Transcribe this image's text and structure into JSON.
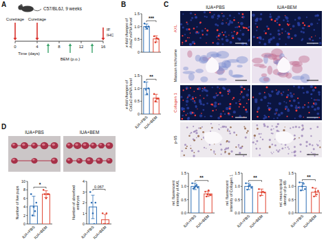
{
  "figure": {
    "panels": [
      "A",
      "B",
      "C",
      "D"
    ],
    "schema": {
      "strain": "C57/BL6J, 9 weeks",
      "procedure": "Curettage",
      "procedure_days": [
        0,
        4
      ],
      "treatment": "BEM (p.o.)",
      "treatment_days": [
        6,
        10,
        14
      ],
      "endpoint": [
        "IF",
        "IHC"
      ],
      "endpoint_day": 16,
      "xlabel": "Time (days)",
      "xlim": [
        0,
        16
      ],
      "xticks": [
        0,
        4,
        8,
        12,
        16
      ]
    },
    "images": {
      "columns": [
        "IUA+PBS",
        "IUA+BEM"
      ],
      "rows": [
        "AXL",
        "Masson trichrome",
        "Collagen 1",
        "p-65"
      ]
    },
    "photos": {
      "columns": [
        "IUA+PBS",
        "IUA+BEM"
      ]
    }
  },
  "chart_data": [
    {
      "type": "bar",
      "ylabel": "x-fold changes of Acta2 mRNA level",
      "categories": [
        null,
        null
      ],
      "values": [
        1.0,
        0.52
      ],
      "errors": [
        0.1,
        0.12
      ],
      "points": [
        [
          1.12,
          0.98,
          0.92,
          1.0
        ],
        [
          0.62,
          0.38,
          0.55,
          0.52
        ]
      ],
      "colors": [
        "#2c6db4",
        "#e0402e"
      ],
      "ylim": [
        0,
        1.5
      ],
      "yticks": [
        0,
        0.5,
        {
          "value": 1,
          "label": "1.0"
        },
        1.5
      ],
      "significance": "***",
      "tick_labels": "y"
    },
    {
      "type": "bar",
      "ylabel": "x-fold changes of Col1a1 mRNA level",
      "categories": [
        "IUA+PBS",
        "IUA+BEM"
      ],
      "values": [
        1.0,
        0.62
      ],
      "errors": [
        0.25,
        0.15
      ],
      "points": [
        [
          1.25,
          0.95,
          0.78,
          1.0
        ],
        [
          0.78,
          0.5,
          0.6,
          0.6
        ]
      ],
      "colors": [
        "#2c6db4",
        "#e0402e"
      ],
      "ylim": [
        0,
        1.5
      ],
      "yticks": [
        0,
        0.5,
        {
          "value": 1,
          "label": "1.0"
        },
        1.5
      ],
      "significance": "**"
    },
    {
      "type": "bar",
      "ylabel": "rel. fluorescent intensity of AXL",
      "categories": [
        "IUA+PBS",
        "IUA+BEM"
      ],
      "values": [
        1.0,
        0.72
      ],
      "errors": [
        0.12,
        0.1
      ],
      "points": [
        [
          1.12,
          0.92,
          0.95,
          1.0,
          1.05,
          0.96
        ],
        [
          0.8,
          0.62,
          0.7,
          0.85,
          0.68,
          0.67
        ]
      ],
      "colors": [
        "#2c6db4",
        "#e0402e"
      ],
      "ylim": [
        0,
        1.5
      ],
      "yticks": [
        {
          "value": 0,
          "label": "0.0"
        },
        0.5,
        {
          "value": 1,
          "label": "1.0"
        },
        1.5
      ],
      "significance": "**"
    },
    {
      "type": "bar",
      "ylabel": "rel. fluorescent intensity of Collagen 1",
      "categories": [
        "IUA+PBS",
        "IUA+BEM"
      ],
      "values": [
        1.0,
        0.78
      ],
      "errors": [
        0.12,
        0.12
      ],
      "points": [
        [
          1.12,
          0.88,
          1.0,
          1.05,
          0.95
        ],
        [
          0.9,
          0.65,
          0.78,
          0.8,
          0.77
        ]
      ],
      "colors": [
        "#2c6db4",
        "#e0402e"
      ],
      "ylim": [
        0,
        1.5
      ],
      "yticks": [
        {
          "value": 0,
          "label": "0.0"
        },
        0.5,
        {
          "value": 1,
          "label": "1.0"
        },
        1.5
      ],
      "significance": "**"
    },
    {
      "type": "bar",
      "ylabel": "rel. mean optical density of p-65",
      "categories": [
        "IUA+PBS",
        "IUA+BEM"
      ],
      "values": [
        1.0,
        0.78
      ],
      "errors": [
        0.15,
        0.15
      ],
      "points": [
        [
          1.15,
          0.85,
          1.0,
          1.1,
          0.9
        ],
        [
          0.95,
          0.62,
          0.8,
          0.7,
          0.83
        ]
      ],
      "colors": [
        "#2c6db4",
        "#e0402e"
      ],
      "ylim": [
        0,
        1.5
      ],
      "yticks": [
        {
          "value": 0,
          "label": "0.0"
        },
        0.5,
        {
          "value": 1,
          "label": "1.0"
        },
        1.5
      ],
      "significance": "**"
    },
    {
      "type": "bar",
      "ylabel": "Number of live pups",
      "categories": [
        "IUA+PBS",
        "IUA+BEM"
      ],
      "values": [
        4.2,
        7.0
      ],
      "errors": [
        2.3,
        0.8
      ],
      "points": [
        [
          7,
          2,
          4,
          3,
          5
        ],
        [
          8,
          7,
          6,
          7,
          7
        ]
      ],
      "colors": [
        "#2c6db4",
        "#e0402e"
      ],
      "ylim": [
        0,
        10
      ],
      "yticks": [
        0,
        2,
        4,
        6,
        8,
        10
      ],
      "significance": "*"
    },
    {
      "type": "bar",
      "ylabel": "Number of absorbed embryos",
      "categories": [
        "IUA+PBS",
        "IUA+BEM"
      ],
      "values": [
        1.6,
        0.4
      ],
      "errors": [
        1.1,
        0.5
      ],
      "points": [
        [
          3,
          2,
          1,
          0,
          2
        ],
        [
          1,
          0,
          0,
          1,
          0
        ]
      ],
      "colors": [
        "#2c6db4",
        "#e0402e"
      ],
      "ylim": [
        0,
        4
      ],
      "yticks": [
        0,
        1,
        2,
        3,
        4
      ],
      "significance": "0.067"
    }
  ]
}
